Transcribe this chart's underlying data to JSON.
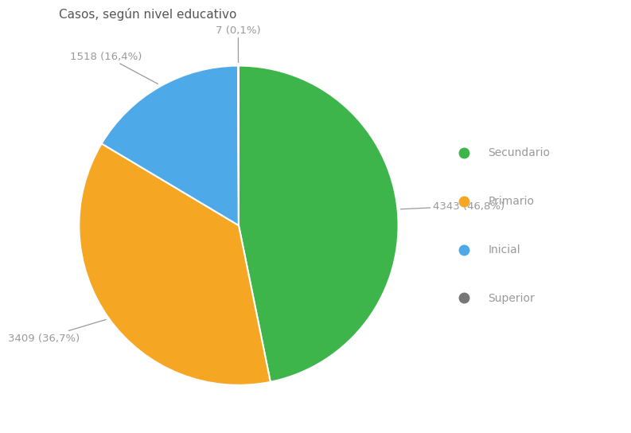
{
  "title": "Casos, según nivel educativo",
  "labels": [
    "Secundario",
    "Primario",
    "Inicial",
    "Superior"
  ],
  "values": [
    4343,
    3409,
    1518,
    7
  ],
  "percentages": [
    "46,8%",
    "36,7%",
    "16,4%",
    "0,1%"
  ],
  "counts": [
    "4343",
    "3409",
    "1518",
    "7"
  ],
  "colors": [
    "#3db54a",
    "#f5a623",
    "#4da9e8",
    "#777777"
  ],
  "background_color": "#ffffff",
  "title_fontsize": 11,
  "label_fontsize": 9.5,
  "legend_fontsize": 10,
  "label_color": "#999999",
  "title_color": "#555555",
  "startangle": 90
}
